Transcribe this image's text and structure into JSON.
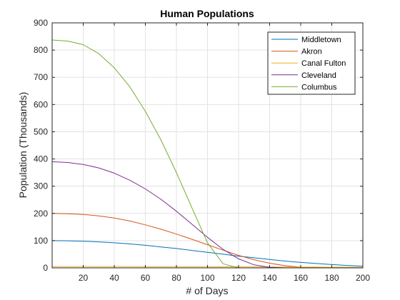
{
  "chart_data": {
    "type": "line",
    "title": "Human Populations",
    "xlabel": "# of Days",
    "ylabel": "Population (Thousands)",
    "xlim": [
      0,
      200
    ],
    "ylim": [
      0,
      900
    ],
    "xticks": [
      20,
      40,
      60,
      80,
      100,
      120,
      140,
      160,
      180,
      200
    ],
    "yticks": [
      0,
      100,
      200,
      300,
      400,
      500,
      600,
      700,
      800,
      900
    ],
    "grid": true,
    "legend_position": "top-right",
    "x": [
      0,
      10,
      20,
      30,
      40,
      50,
      60,
      70,
      80,
      90,
      100,
      110,
      120,
      130,
      140,
      150,
      160,
      170,
      180,
      190,
      200
    ],
    "series": [
      {
        "name": "Middletown",
        "color": "#0072BD",
        "values": [
          100,
          99.5,
          98,
          95.5,
          92,
          88,
          83,
          77,
          71,
          64,
          57,
          50,
          43,
          37,
          31,
          25,
          20,
          16,
          12,
          9,
          6
        ]
      },
      {
        "name": "Akron",
        "color": "#D95319",
        "values": [
          200,
          199,
          196,
          191,
          183,
          172,
          158,
          142,
          124,
          105,
          85,
          65,
          46,
          30,
          17,
          8,
          3,
          1,
          0,
          0,
          0
        ]
      },
      {
        "name": "Canal Fulton",
        "color": "#EDB120",
        "values": [
          5,
          5,
          5,
          5,
          4.9,
          4.9,
          4.8,
          4.7,
          4.6,
          4.5,
          4.3,
          4.1,
          3.9,
          3.7,
          3.5,
          3.2,
          3.0,
          2.8,
          2.6,
          2.4,
          2.2
        ]
      },
      {
        "name": "Cleveland",
        "color": "#7E2F8E",
        "values": [
          390,
          387,
          380,
          367,
          348,
          322,
          290,
          252,
          208,
          160,
          112,
          68,
          33,
          11,
          2,
          0,
          0,
          0,
          0,
          0,
          0
        ]
      },
      {
        "name": "Columbus",
        "color": "#77AC30",
        "values": [
          837,
          833,
          820,
          787,
          735,
          665,
          575,
          470,
          350,
          220,
          92,
          15,
          0,
          0,
          0,
          0,
          0,
          0,
          0,
          0,
          0
        ]
      }
    ]
  }
}
